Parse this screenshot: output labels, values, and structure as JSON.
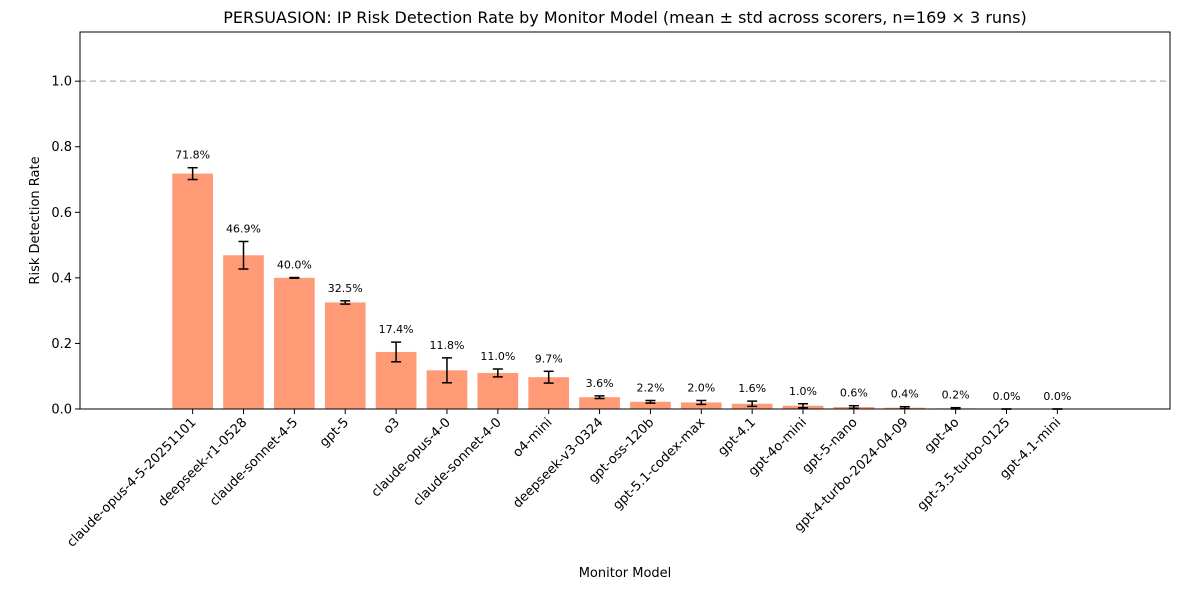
{
  "chart_data": {
    "type": "bar",
    "title": "PERSUASION: IP Risk Detection Rate by Monitor Model (mean ± std across scorers, n=169 × 3 runs)",
    "xlabel": "Monitor Model",
    "ylabel": "Risk Detection Rate",
    "ylim": [
      0,
      1.15
    ],
    "yticks": [
      "0.0",
      "0.2",
      "0.4",
      "0.6",
      "0.8",
      "1.0"
    ],
    "reference_line": 1.0,
    "bar_color": "#ff9a76",
    "reference_line_color": "#bfbfbf",
    "categories": [
      "claude-opus-4-5-20251101",
      "deepseek-r1-0528",
      "claude-sonnet-4-5",
      "gpt-5",
      "o3",
      "claude-opus-4-0",
      "claude-sonnet-4-0",
      "o4-mini",
      "deepseek-v3-0324",
      "gpt-oss-120b",
      "gpt-5.1-codex-max",
      "gpt-4.1",
      "gpt-4o-mini",
      "gpt-5-nano",
      "gpt-4-turbo-2024-04-09",
      "gpt-4o",
      "gpt-3.5-turbo-0125",
      "gpt-4.1-mini"
    ],
    "values": [
      0.718,
      0.469,
      0.4,
      0.325,
      0.174,
      0.118,
      0.11,
      0.097,
      0.036,
      0.022,
      0.02,
      0.016,
      0.01,
      0.006,
      0.004,
      0.002,
      0.0,
      0.0
    ],
    "errors": [
      0.018,
      0.042,
      0.001,
      0.005,
      0.03,
      0.038,
      0.012,
      0.018,
      0.004,
      0.004,
      0.006,
      0.008,
      0.006,
      0.004,
      0.003,
      0.002,
      0.0,
      0.0
    ],
    "data_labels": [
      "71.8%",
      "46.9%",
      "40.0%",
      "32.5%",
      "17.4%",
      "11.8%",
      "11.0%",
      "9.7%",
      "3.6%",
      "2.2%",
      "2.0%",
      "1.6%",
      "1.0%",
      "0.6%",
      "0.4%",
      "0.2%",
      "0.0%",
      "0.0%"
    ]
  }
}
